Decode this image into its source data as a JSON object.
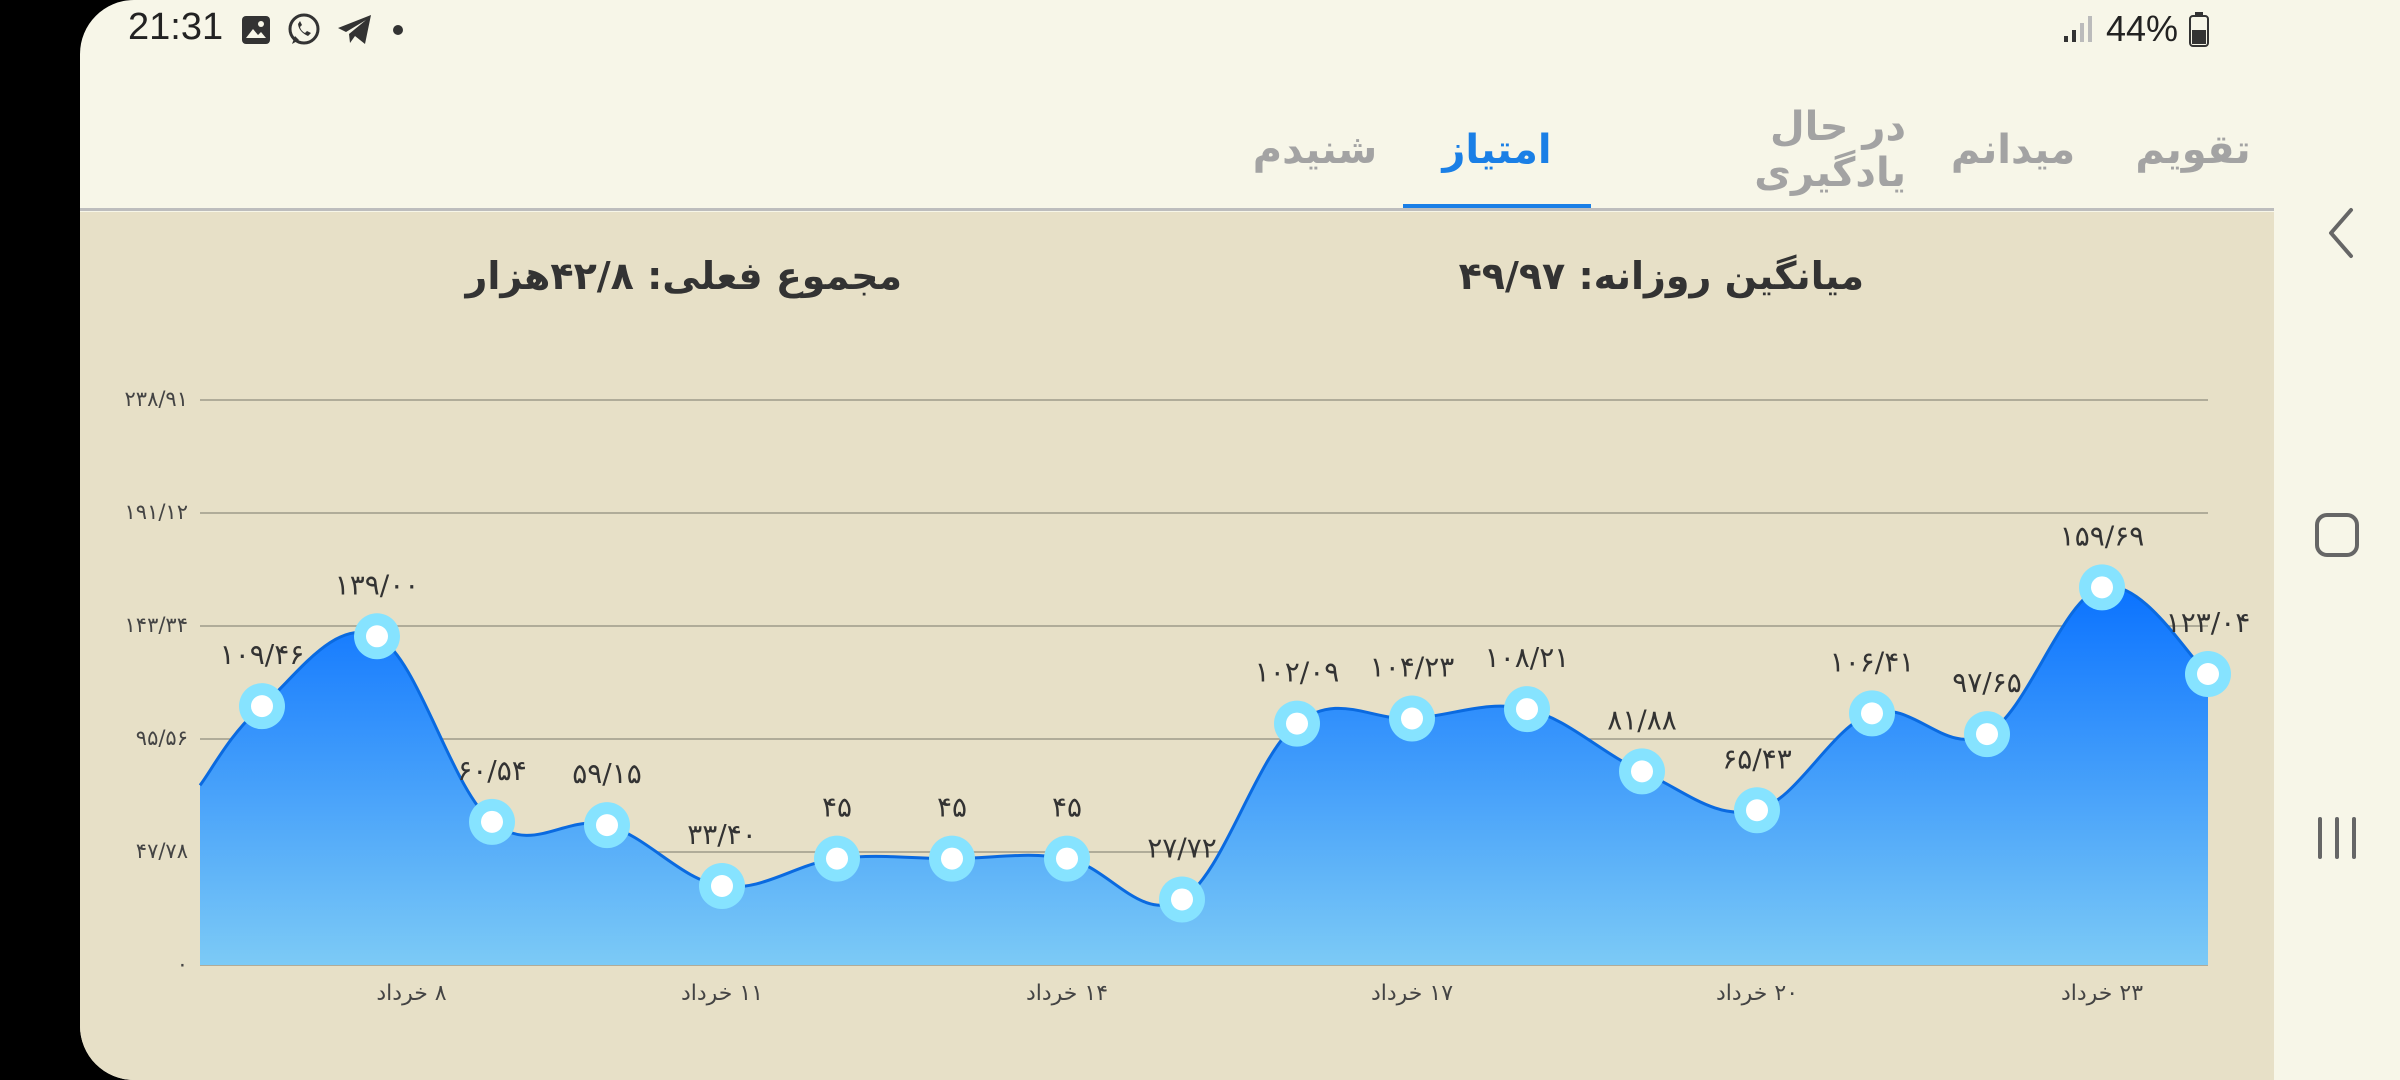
{
  "status": {
    "time": "21:31",
    "battery": "44%",
    "icons": [
      "gallery-icon",
      "whatsapp-icon",
      "telegram-icon",
      "dot-icon"
    ]
  },
  "tabs": [
    {
      "label": "تقویم",
      "active": false
    },
    {
      "label": "میدانم",
      "active": false
    },
    {
      "label": "در حال یادگیری",
      "active": false
    },
    {
      "label": "امتیاز",
      "active": true
    },
    {
      "label": "شنیدم",
      "active": false
    }
  ],
  "summary": {
    "daily_average": "میانگین روزانه: ۴۹/۹۷",
    "current_total": "مجموع فعلی: ۴۲/۸هزار"
  },
  "colors": {
    "accent": "#1a7fe6",
    "area_top": "#0a72ff",
    "area_bottom": "#7ccaf6",
    "point_ring": "#86e3ff"
  },
  "chart_data": {
    "type": "area",
    "y_ticks": [
      "۰",
      "۴۷/۷۸",
      "۹۵/۵۶",
      "۱۴۳/۳۴",
      "۱۹۱/۱۲",
      "۲۳۸/۹۱"
    ],
    "ylim": [
      0,
      238.91
    ],
    "x_tick_labels": [
      "۸ خرداد",
      "۱۱ خرداد",
      "۱۴ خرداد",
      "۱۷ خرداد",
      "۲۰ خرداد",
      "۲۳ خرداد"
    ],
    "x_tick_indices": [
      1.3,
      4,
      7,
      10,
      13,
      16
    ],
    "start_value": 76,
    "values": [
      109.46,
      139.0,
      60.54,
      59.15,
      33.4,
      45,
      45,
      45,
      27.72,
      102.09,
      104.23,
      108.21,
      81.88,
      65.43,
      106.41,
      97.65,
      159.69,
      123.04
    ],
    "value_labels": [
      "۱۰۹/۴۶",
      "۱۳۹/۰۰",
      "۶۰/۵۴",
      "۵۹/۱۵",
      "۳۳/۴۰",
      "۴۵",
      "۴۵",
      "۴۵",
      "۲۷/۷۲",
      "۱۰۲/۰۹",
      "۱۰۴/۲۳",
      "۱۰۸/۲۱",
      "۸۱/۸۸",
      "۶۵/۴۳",
      "۱۰۶/۴۱",
      "۹۷/۶۵",
      "۱۵۹/۶۹",
      "۱۲۳/۰۴"
    ],
    "grid": true
  }
}
